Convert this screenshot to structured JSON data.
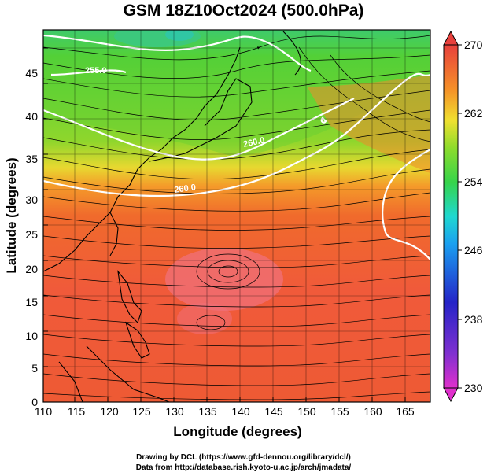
{
  "title": "GSM 18Z10Oct2024 (500.0hPa)",
  "x_axis": {
    "label": "Longitude (degrees)",
    "ticks": [
      "110",
      "115",
      "120",
      "125",
      "130",
      "135",
      "140",
      "145",
      "150",
      "155",
      "160",
      "165"
    ]
  },
  "y_axis": {
    "label": "Latitude  (degrees)",
    "ticks": [
      "0",
      "5",
      "10",
      "15",
      "20",
      "25",
      "30",
      "35",
      "40",
      "45"
    ]
  },
  "colorbar": {
    "ticks": [
      "230",
      "238",
      "246",
      "254",
      "262",
      "270"
    ],
    "colors": [
      "#e23fd0",
      "#3b1fc8",
      "#1b8ff0",
      "#1fd8d8",
      "#3fd23c",
      "#9fdc2e",
      "#f2e03a",
      "#f59a2a",
      "#f26a2a",
      "#e8483c"
    ]
  },
  "contour_labels": [
    "255.0",
    "260.0",
    "260.0"
  ],
  "credits": {
    "line1": "Drawing by DCL (https://www.gfd-dennou.org/library/dcl/)",
    "line2": "Data from http://database.rish.kyoto-u.ac.jp/arch/jmadata/"
  }
}
